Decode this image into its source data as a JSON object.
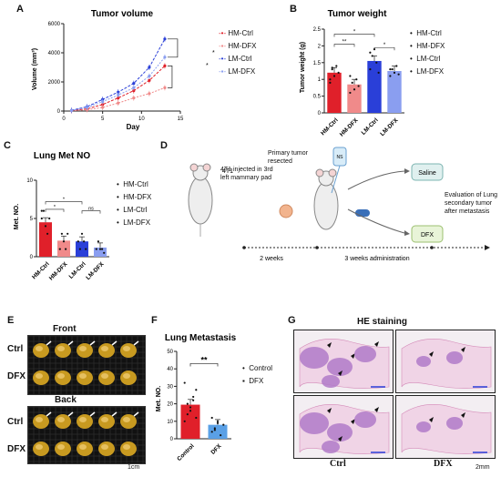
{
  "panels": {
    "A": "A",
    "B": "B",
    "C": "C",
    "D": "D",
    "E": "E",
    "F": "F",
    "G": "G"
  },
  "colors": {
    "hm_ctrl": "#e0202a",
    "hm_dfx": "#f08a8a",
    "lm_ctrl": "#2a3fd8",
    "lm_dfx": "#8a9ef0",
    "dfx_bar": "#5aa0e6",
    "he_tissue": "#b07ac8"
  },
  "panel_a": {
    "title": "Tumor volume",
    "xlabel": "Day",
    "ylabel": "Volume (mm³)",
    "legend": [
      "HM-Ctrl",
      "HM-DFX",
      "LM-Ctrl",
      "LM-DFX"
    ],
    "sig": [
      "*",
      "*"
    ]
  },
  "panel_b": {
    "title": "Tumor weight",
    "ylabel": "Tumor weight (g)",
    "legend": [
      "HM-Ctrl",
      "HM-DFX",
      "LM-Ctrl",
      "LM-DFX"
    ],
    "sig": [
      "*",
      "**",
      "*"
    ]
  },
  "panel_c": {
    "title": "Lung Met NO",
    "ylabel": "Met. NO.",
    "legend": [
      "HM-Ctrl",
      "HM-DFX",
      "LM-Ctrl",
      "LM-DFX"
    ],
    "sig": [
      "*",
      "*",
      "ns"
    ]
  },
  "panel_d": {
    "injection": "4T1 injected in 3rd left mammary pad",
    "resected": "Primary tumor resected",
    "ns": "NS",
    "saline": "Saline",
    "dfx": "DFX",
    "evaluation": "Evaluation of Lung secondary tumor after metastasis",
    "weeks2": "2 weeks",
    "weeks3": "3 weeks administration"
  },
  "panel_e": {
    "front": "Front",
    "back": "Back",
    "ctrl": "Ctrl",
    "dfx": "DFX",
    "scale": "1cm"
  },
  "panel_f": {
    "title": "Lung Metastasis",
    "ylabel": "Met. NO.",
    "legend": [
      "Control",
      "DFX"
    ],
    "sig": "**"
  },
  "panel_g": {
    "title": "HE staining",
    "ctrl": "Ctrl",
    "dfx": "DFX",
    "scale": "2mm"
  },
  "chart_data": [
    {
      "type": "line",
      "title": "Tumor volume",
      "xlabel": "Day",
      "ylabel": "Volume (mm³)",
      "xlim": [
        0,
        15
      ],
      "ylim": [
        0,
        6000
      ],
      "xticks": [
        0,
        5,
        10,
        15
      ],
      "yticks": [
        0,
        2000,
        4000,
        6000
      ],
      "x": [
        1,
        3,
        5,
        7,
        9,
        11,
        13
      ],
      "series": [
        {
          "name": "HM-Ctrl",
          "values": [
            30,
            150,
            450,
            900,
            1400,
            2100,
            3100
          ]
        },
        {
          "name": "HM-DFX",
          "values": [
            20,
            90,
            250,
            550,
            900,
            1200,
            1600
          ]
        },
        {
          "name": "LM-Ctrl",
          "values": [
            50,
            300,
            800,
            1300,
            1900,
            3000,
            4950
          ]
        },
        {
          "name": "LM-DFX",
          "values": [
            40,
            250,
            650,
            1100,
            1600,
            2400,
            3700
          ]
        }
      ]
    },
    {
      "type": "bar",
      "title": "Tumor weight",
      "ylabel": "Tumor weight (g)",
      "categories": [
        "HM-Ctrl",
        "HM-DFX",
        "LM-Ctrl",
        "LM-DFX"
      ],
      "values": [
        1.2,
        0.85,
        1.55,
        1.25
      ],
      "ylim": [
        0,
        2.5
      ],
      "yticks": [
        0,
        0.5,
        1,
        1.5,
        2,
        2.5
      ]
    },
    {
      "type": "bar",
      "title": "Lung Met NO",
      "ylabel": "Met. NO.",
      "categories": [
        "HM-Ctrl",
        "HM-DFX",
        "LM-Ctrl",
        "LM-DFX"
      ],
      "values": [
        4.5,
        2.1,
        2.0,
        1.2
      ],
      "ylim": [
        0,
        10
      ],
      "yticks": [
        0,
        5,
        10
      ]
    },
    {
      "type": "bar",
      "title": "Lung Metastasis",
      "ylabel": "Met. NO.",
      "categories": [
        "Control",
        "DFX"
      ],
      "values": [
        19.5,
        8
      ],
      "ylim": [
        0,
        50
      ],
      "yticks": [
        0,
        10,
        20,
        30,
        40,
        50
      ]
    }
  ]
}
